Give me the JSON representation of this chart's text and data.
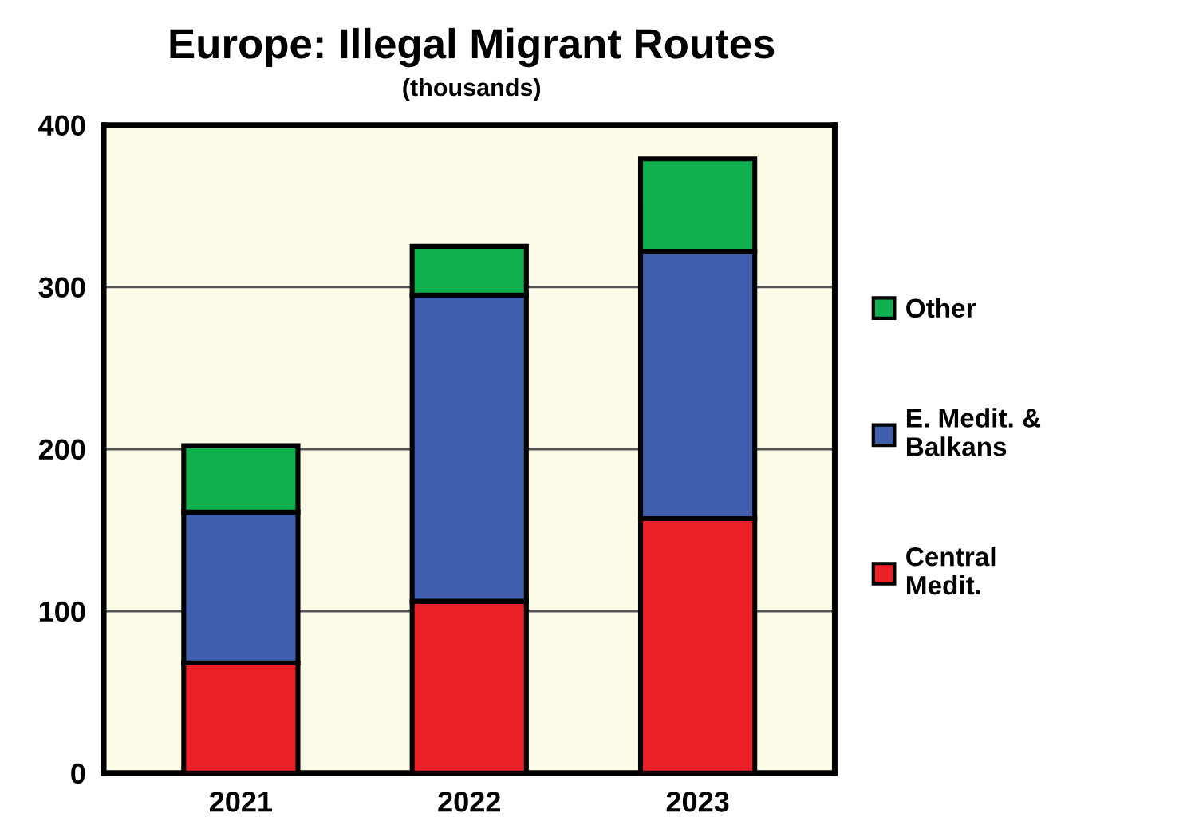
{
  "chart_data": {
    "type": "bar",
    "title": "Europe: Illegal Migrant Routes",
    "subtitle": "(thousands)",
    "categories": [
      "2021",
      "2022",
      "2023"
    ],
    "stacked": true,
    "series": [
      {
        "name": "Central\nMedit.",
        "color": "#ec2027",
        "values": [
          68,
          106,
          157
        ]
      },
      {
        "name": "E. Medit. &\nBalkans",
        "color": "#3f5fae",
        "values": [
          93,
          189,
          165
        ]
      },
      {
        "name": "Other",
        "color": "#10b04f",
        "values": [
          41,
          30,
          57
        ]
      }
    ],
    "ylim": [
      0,
      400
    ],
    "yticks": [
      0,
      100,
      200,
      300,
      400
    ],
    "grid": "y",
    "legend": "right"
  }
}
